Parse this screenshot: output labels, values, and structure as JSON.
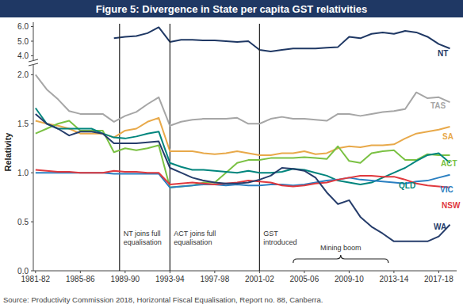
{
  "chart_data": [
    {
      "type": "line",
      "title": "Figure 5: Divergence in State per capita GST relativities",
      "x": [
        1981,
        1982,
        1983,
        1984,
        1985,
        1986,
        1987,
        1988,
        1989,
        1990,
        1991,
        1992,
        1993,
        1994,
        1995,
        1996,
        1997,
        1998,
        1999,
        2000,
        2001,
        2002,
        2003,
        2004,
        2005,
        2006,
        2007,
        2008,
        2009,
        2010,
        2011,
        2012,
        2013,
        2014,
        2015,
        2016,
        2017,
        2018
      ],
      "xlim": [
        1980.8,
        2018.6
      ],
      "ylim": [
        3.7,
        6.3
      ],
      "yticks": [
        {
          "value": 4,
          "label": "4.0"
        },
        {
          "value": 5,
          "label": "5.0"
        },
        {
          "value": 6,
          "label": "6.0"
        }
      ],
      "tick_labels": "y",
      "grid": false,
      "series": [
        {
          "name": "NT",
          "color": "#1f3864",
          "values": [
            null,
            null,
            null,
            null,
            null,
            null,
            null,
            5.2,
            5.3,
            5.35,
            5.55,
            5.95,
            4.95,
            5.1,
            5.1,
            5.05,
            5.05,
            5.0,
            4.95,
            5.0,
            4.4,
            4.3,
            4.4,
            4.5,
            4.5,
            4.5,
            4.55,
            4.6,
            5.3,
            5.2,
            5.5,
            5.6,
            5.5,
            5.7,
            5.6,
            5.3,
            4.8,
            4.5
          ]
        }
      ]
    },
    {
      "type": "line",
      "y_label": "Relativity",
      "x": [
        1981,
        1982,
        1983,
        1984,
        1985,
        1986,
        1987,
        1988,
        1989,
        1990,
        1991,
        1992,
        1993,
        1994,
        1995,
        1996,
        1997,
        1998,
        1999,
        2000,
        2001,
        2002,
        2003,
        2004,
        2005,
        2006,
        2007,
        2008,
        2009,
        2010,
        2011,
        2012,
        2013,
        2014,
        2015,
        2016,
        2017,
        2018
      ],
      "xlim": [
        1980.8,
        2018.6
      ],
      "xticks": [
        {
          "value": 1981,
          "label": "1981-82"
        },
        {
          "value": 1985,
          "label": "1985-86"
        },
        {
          "value": 1989,
          "label": "1989-90"
        },
        {
          "value": 1993,
          "label": "1993-94"
        },
        {
          "value": 1997,
          "label": "1997-98"
        },
        {
          "value": 2001,
          "label": "2001-02"
        },
        {
          "value": 2005,
          "label": "2005-06"
        },
        {
          "value": 2009,
          "label": "2009-10"
        },
        {
          "value": 2013,
          "label": "2013-14"
        },
        {
          "value": 2017,
          "label": "2017-18"
        }
      ],
      "ylim": [
        0,
        2.1
      ],
      "yticks": [
        {
          "value": 0,
          "label": "0.0"
        },
        {
          "value": 0.5,
          "label": "0.5"
        },
        {
          "value": 1,
          "label": "1.0"
        },
        {
          "value": 1.5,
          "label": "1.5"
        },
        {
          "value": 2,
          "label": "2.0"
        }
      ],
      "grid": false,
      "series": [
        {
          "name": "TAS",
          "color": "#a6a6a6",
          "values": [
            2.0,
            1.85,
            1.75,
            1.63,
            1.6,
            1.6,
            1.6,
            1.52,
            1.58,
            1.62,
            1.7,
            1.77,
            1.48,
            1.52,
            1.54,
            1.55,
            1.55,
            1.55,
            1.56,
            1.5,
            1.5,
            1.55,
            1.57,
            1.55,
            1.55,
            1.54,
            1.53,
            1.6,
            1.6,
            1.58,
            1.6,
            1.62,
            1.63,
            1.65,
            1.82,
            1.76,
            1.77,
            1.72
          ]
        },
        {
          "name": "SA",
          "color": "#e8a94a",
          "values": [
            1.53,
            1.5,
            1.48,
            1.45,
            1.4,
            1.4,
            1.4,
            1.36,
            1.43,
            1.45,
            1.52,
            1.56,
            1.22,
            1.22,
            1.22,
            1.2,
            1.19,
            1.2,
            1.22,
            1.2,
            1.18,
            1.18,
            1.2,
            1.2,
            1.22,
            1.19,
            1.2,
            1.25,
            1.27,
            1.26,
            1.28,
            1.28,
            1.29,
            1.35,
            1.4,
            1.42,
            1.44,
            1.47
          ]
        },
        {
          "name": "ACT",
          "color": "#7ac143",
          "values": [
            1.4,
            1.45,
            1.5,
            1.53,
            1.43,
            1.43,
            1.43,
            1.21,
            1.25,
            1.23,
            1.25,
            1.28,
            0.85,
            0.86,
            0.87,
            0.9,
            0.9,
            1.0,
            1.1,
            1.13,
            1.13,
            1.15,
            1.15,
            1.15,
            1.16,
            1.15,
            1.14,
            1.27,
            1.12,
            1.1,
            1.2,
            1.22,
            1.23,
            1.13,
            1.13,
            1.19,
            1.18,
            1.18
          ]
        },
        {
          "name": "QLD",
          "color": "#00857d",
          "values": [
            1.66,
            1.5,
            1.45,
            1.45,
            1.45,
            1.45,
            1.4,
            1.36,
            1.35,
            1.37,
            1.4,
            1.42,
            1.1,
            1.06,
            1.03,
            1.03,
            1.02,
            1.01,
            1.0,
            1.02,
            1.0,
            1.0,
            1.01,
            1.04,
            1.03,
            1.0,
            0.97,
            0.92,
            0.9,
            0.88,
            0.9,
            0.95,
            1.0,
            1.05,
            1.12,
            1.18,
            1.2,
            1.1
          ]
        },
        {
          "name": "VIC",
          "color": "#2a7fc1",
          "values": [
            1.0,
            1.0,
            1.0,
            1.0,
            1.0,
            1.0,
            1.0,
            0.99,
            0.99,
            0.99,
            0.99,
            0.99,
            0.85,
            0.86,
            0.87,
            0.88,
            0.88,
            0.87,
            0.88,
            0.87,
            0.87,
            0.88,
            0.88,
            0.87,
            0.88,
            0.9,
            0.92,
            0.93,
            0.95,
            0.93,
            0.92,
            0.91,
            0.9,
            0.89,
            0.91,
            0.92,
            0.95,
            0.98
          ]
        },
        {
          "name": "NSW",
          "color": "#e0393e",
          "values": [
            1.03,
            1.02,
            1.01,
            1.01,
            1.0,
            1.0,
            1.0,
            1.02,
            1.01,
            1.01,
            1.0,
            1.0,
            0.88,
            0.89,
            0.9,
            0.89,
            0.88,
            0.89,
            0.9,
            0.92,
            0.91,
            0.9,
            0.87,
            0.86,
            0.87,
            0.89,
            0.9,
            0.93,
            0.95,
            0.97,
            0.97,
            0.96,
            0.96,
            0.93,
            0.89,
            0.87,
            0.86,
            0.85
          ]
        },
        {
          "name": "WA",
          "color": "#263d6b",
          "values": [
            1.6,
            1.5,
            1.45,
            1.38,
            1.42,
            1.42,
            1.4,
            1.3,
            1.3,
            1.3,
            1.31,
            1.32,
            1.05,
            1.0,
            0.95,
            0.92,
            0.9,
            0.89,
            0.89,
            0.9,
            0.93,
            0.97,
            1.05,
            1.04,
            1.02,
            0.95,
            0.8,
            0.68,
            0.72,
            0.55,
            0.45,
            0.38,
            0.3,
            0.3,
            0.3,
            0.3,
            0.35,
            0.47
          ]
        }
      ],
      "annotations": [
        {
          "x": 1988.5,
          "lines": [
            "NT joins full",
            "equalisation"
          ]
        },
        {
          "x": 1993,
          "lines": [
            "ACT joins full",
            "equalisation"
          ]
        },
        {
          "x": 2001,
          "lines": [
            "GST",
            "introduced"
          ]
        }
      ],
      "ranges": [
        {
          "text": "Mining boom",
          "from": 2004,
          "to": 2012.5
        }
      ],
      "source": "Source: Productivity Commission 2018, Horizontal Fiscal Equalisation, Report no. 88, Canberra."
    }
  ]
}
